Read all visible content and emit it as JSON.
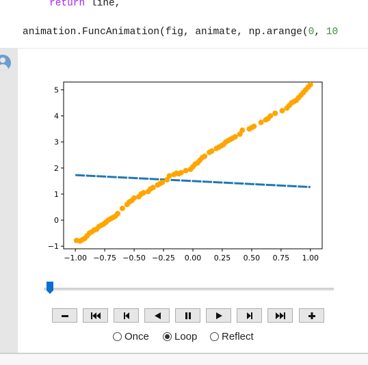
{
  "code": {
    "line1_keyword": "return",
    "line1_rest": " line,",
    "line2_pre": "animation.FuncAnimation(fig, animate, np.arange(",
    "line2_num1": "0",
    "line2_mid": ", ",
    "line2_num2": "10"
  },
  "controls": {
    "buttons": [
      "decrease-speed",
      "first-frame",
      "previous-frame",
      "play-reverse",
      "pause",
      "play",
      "next-frame",
      "last-frame",
      "increase-speed"
    ],
    "slider_value_fraction": 0.02,
    "loop_options": [
      {
        "label": "Once",
        "selected": false
      },
      {
        "label": "Loop",
        "selected": true
      },
      {
        "label": "Reflect",
        "selected": false
      }
    ]
  },
  "colors": {
    "scatter": "#ffa500",
    "line": "#1f77b4",
    "slider_thumb": "#0a6fce"
  },
  "chart_data": {
    "type": "scatter",
    "title": "",
    "xlabel": "",
    "ylabel": "",
    "xlim": [
      -1.1,
      1.1
    ],
    "ylim": [
      -1.1,
      5.3
    ],
    "xticks": [
      "−1.00",
      "−0.75",
      "−0.50",
      "−0.25",
      "0.00",
      "0.25",
      "0.50",
      "0.75",
      "1.00"
    ],
    "xtick_values": [
      -1.0,
      -0.75,
      -0.5,
      -0.25,
      0.0,
      0.25,
      0.5,
      0.75,
      1.0
    ],
    "yticks": [
      "−1",
      "0",
      "1",
      "2",
      "3",
      "4",
      "5"
    ],
    "ytick_values": [
      -1,
      0,
      1,
      2,
      3,
      4,
      5
    ],
    "series": [
      {
        "kind": "scatter",
        "x": [
          -0.99,
          -0.96,
          -0.94,
          -0.92,
          -0.9,
          -0.88,
          -0.86,
          -0.84,
          -0.82,
          -0.8,
          -0.78,
          -0.76,
          -0.74,
          -0.72,
          -0.7,
          -0.68,
          -0.66,
          -0.64,
          -0.6,
          -0.56,
          -0.54,
          -0.52,
          -0.5,
          -0.46,
          -0.44,
          -0.42,
          -0.38,
          -0.36,
          -0.34,
          -0.3,
          -0.28,
          -0.26,
          -0.22,
          -0.2,
          -0.16,
          -0.14,
          -0.12,
          -0.1,
          -0.06,
          -0.02,
          0.0,
          0.02,
          0.04,
          0.06,
          0.08,
          0.1,
          0.14,
          0.16,
          0.2,
          0.22,
          0.24,
          0.26,
          0.28,
          0.3,
          0.32,
          0.34,
          0.36,
          0.4,
          0.42,
          0.48,
          0.5,
          0.52,
          0.58,
          0.62,
          0.64,
          0.66,
          0.7,
          0.76,
          0.8,
          0.82,
          0.84,
          0.86,
          0.88,
          0.9,
          0.92,
          0.94,
          0.96,
          0.98,
          1.0
        ],
        "y": [
          -0.78,
          -0.8,
          -0.75,
          -0.7,
          -0.6,
          -0.5,
          -0.45,
          -0.38,
          -0.35,
          -0.25,
          -0.2,
          -0.15,
          -0.08,
          0.0,
          0.05,
          0.1,
          0.15,
          0.25,
          0.45,
          0.6,
          0.7,
          0.75,
          0.85,
          0.9,
          1.0,
          1.05,
          1.1,
          1.2,
          1.25,
          1.35,
          1.4,
          1.45,
          1.55,
          1.7,
          1.75,
          1.8,
          1.78,
          1.82,
          1.9,
          1.95,
          2.05,
          2.15,
          2.2,
          2.3,
          2.4,
          2.45,
          2.6,
          2.65,
          2.75,
          2.8,
          2.85,
          2.9,
          3.0,
          3.05,
          3.1,
          3.15,
          3.2,
          3.3,
          3.45,
          3.5,
          3.55,
          3.6,
          3.75,
          3.85,
          3.9,
          4.0,
          4.1,
          4.2,
          4.3,
          4.4,
          4.5,
          4.55,
          4.6,
          4.7,
          4.8,
          4.9,
          5.0,
          5.1,
          5.2
        ]
      },
      {
        "kind": "line",
        "x": [
          -1.0,
          1.0
        ],
        "y": [
          1.73,
          1.27
        ]
      }
    ]
  }
}
